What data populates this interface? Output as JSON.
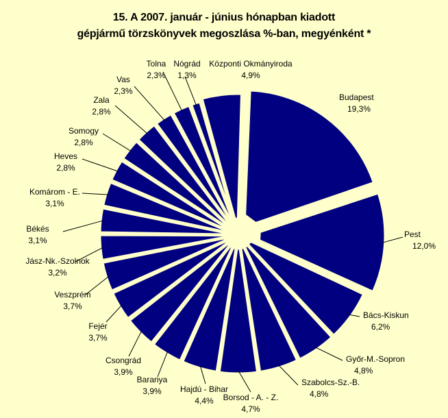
{
  "chart_data": {
    "type": "pie",
    "title_line1": "15. A  2007. január - június hónapban kiadott",
    "title_line2": "gépjármű törzskönyvek megoszlása %-ban, megyénként *",
    "colors": {
      "slice": "#000080",
      "background": "#ffffcc",
      "outline": "#ffffff",
      "leader": "#000000"
    },
    "exploded": true,
    "slices": [
      {
        "label": "Budapest",
        "value_label": "19,3%",
        "value": 19.3
      },
      {
        "label": "Pest",
        "value_label": "12,0%",
        "value": 12.0
      },
      {
        "label": "Bács-Kiskun",
        "value_label": "6,2%",
        "value": 6.2
      },
      {
        "label": "Győr-M.-Sopron",
        "value_label": "4,8%",
        "value": 4.8
      },
      {
        "label": "Szabolcs-Sz.-B.",
        "value_label": "4,8%",
        "value": 4.8
      },
      {
        "label": "Borsod - A. - Z.",
        "value_label": "4,7%",
        "value": 4.7
      },
      {
        "label": "Hajdú - Bihar",
        "value_label": "4,4%",
        "value": 4.4
      },
      {
        "label": "Baranya",
        "value_label": "3,9%",
        "value": 3.9
      },
      {
        "label": "Csongrád",
        "value_label": "3,9%",
        "value": 3.9
      },
      {
        "label": "Fejér",
        "value_label": "3,7%",
        "value": 3.7
      },
      {
        "label": "Veszprém",
        "value_label": "3,7%",
        "value": 3.7
      },
      {
        "label": "Jász-Nk.-Szolnok",
        "value_label": "3,2%",
        "value": 3.2
      },
      {
        "label": "Békés",
        "value_label": "3,1%",
        "value": 3.1
      },
      {
        "label": "Komárom - E.",
        "value_label": "3,1%",
        "value": 3.1
      },
      {
        "label": "Heves",
        "value_label": "2,8%",
        "value": 2.8
      },
      {
        "label": "Somogy",
        "value_label": "2,8%",
        "value": 2.8
      },
      {
        "label": "Zala",
        "value_label": "2,8%",
        "value": 2.8
      },
      {
        "label": "Vas",
        "value_label": "2,3%",
        "value": 2.3
      },
      {
        "label": "Tolna",
        "value_label": "2,3%",
        "value": 2.3
      },
      {
        "label": "Nógrád",
        "value_label": "1,3%",
        "value": 1.3
      },
      {
        "label": "Központi Okmányiroda",
        "value_label": "4,9%",
        "value": 4.9
      }
    ]
  }
}
